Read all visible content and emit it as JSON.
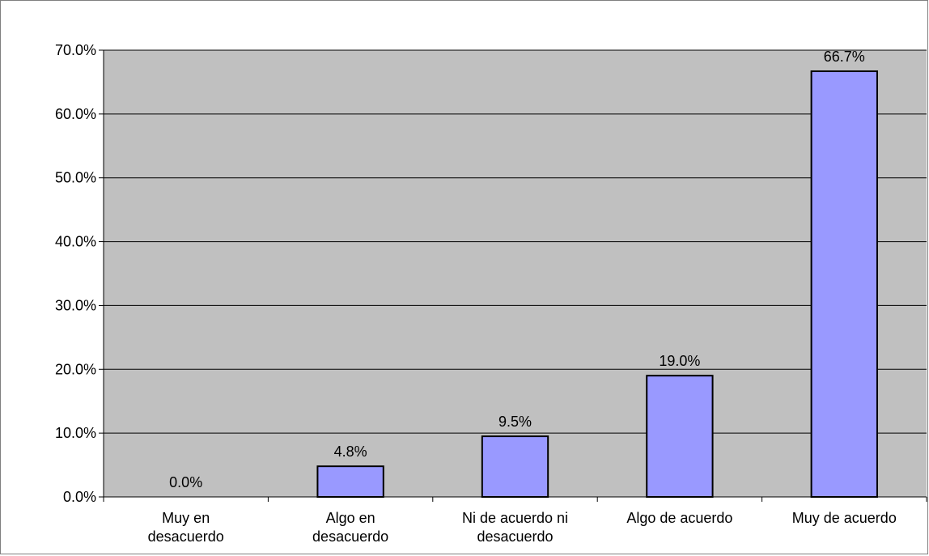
{
  "chart_data": {
    "type": "bar",
    "title": "",
    "xlabel": "",
    "ylabel": "",
    "categories": [
      [
        "Muy en",
        "desacuerdo"
      ],
      [
        "Algo en",
        "desacuerdo"
      ],
      [
        "Ni de acuerdo ni",
        "desacuerdo"
      ],
      [
        "Algo de acuerdo"
      ],
      [
        "Muy de acuerdo"
      ]
    ],
    "values": [
      0.0,
      4.8,
      9.5,
      19.0,
      66.7
    ],
    "data_labels": [
      "0.0%",
      "4.8%",
      "9.5%",
      "19.0%",
      "66.7%"
    ],
    "ylim": [
      0,
      70
    ],
    "yticks": [
      0,
      10,
      20,
      30,
      40,
      50,
      60,
      70
    ],
    "ytick_labels": [
      "0.0%",
      "10.0%",
      "20.0%",
      "30.0%",
      "40.0%",
      "50.0%",
      "60.0%",
      "70.0%"
    ],
    "grid": true,
    "legend": "none",
    "colors": {
      "bar_fill": "#9999ff",
      "bar_stroke": "#000000",
      "plot_background": "#c0c0c0",
      "gridline": "#000000"
    }
  }
}
